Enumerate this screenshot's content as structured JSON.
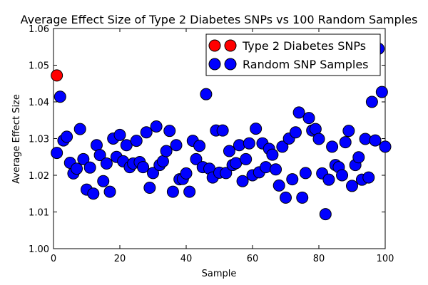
{
  "chart_data": {
    "type": "scatter",
    "title": "Average Effect Size of Type 2 Diabetes SNPs vs 100 Random Samples",
    "xlabel": "Sample",
    "ylabel": "Average Effect Size",
    "xlim": [
      0,
      100
    ],
    "ylim": [
      1.0,
      1.06
    ],
    "xticks": [
      0,
      20,
      40,
      60,
      80,
      100
    ],
    "yticks": [
      1.0,
      1.01,
      1.02,
      1.03,
      1.04,
      1.05,
      1.06
    ],
    "x_tick_labels": [
      "0",
      "20",
      "40",
      "60",
      "80",
      "100"
    ],
    "y_tick_labels": [
      "1.00",
      "1.01",
      "1.02",
      "1.03",
      "1.04",
      "1.05",
      "1.06"
    ],
    "grid": false,
    "legend": {
      "placement": "top-right",
      "entries": [
        "Type 2 Diabetes SNPs",
        "Random SNP Samples"
      ]
    },
    "series": [
      {
        "name": "Type 2 Diabetes SNPs",
        "color": "#ff0000",
        "x": [
          1
        ],
        "y": [
          1.0472
        ]
      },
      {
        "name": "Random SNP Samples",
        "color": "#0000ff",
        "x": [
          1,
          2,
          3,
          4,
          5,
          6,
          7,
          8,
          9,
          10,
          11,
          12,
          13,
          14,
          15,
          16,
          17,
          18,
          19,
          20,
          21,
          22,
          23,
          24,
          25,
          26,
          27,
          28,
          29,
          30,
          31,
          32,
          33,
          34,
          35,
          36,
          37,
          38,
          39,
          40,
          41,
          42,
          43,
          44,
          45,
          46,
          47,
          48,
          49,
          50,
          51,
          52,
          53,
          54,
          55,
          56,
          57,
          58,
          59,
          60,
          61,
          62,
          63,
          64,
          65,
          66,
          67,
          68,
          69,
          70,
          71,
          72,
          73,
          74,
          75,
          76,
          77,
          78,
          79,
          80,
          81,
          82,
          83,
          84,
          85,
          86,
          87,
          88,
          89,
          90,
          91,
          92,
          93,
          94,
          95,
          96,
          97,
          98,
          99,
          100
        ],
        "y": [
          1.0261,
          1.0414,
          1.0295,
          1.0305,
          1.0234,
          1.0205,
          1.0218,
          1.0326,
          1.0244,
          1.0161,
          1.0221,
          1.015,
          1.0282,
          1.0255,
          1.0184,
          1.0232,
          1.0155,
          1.03,
          1.025,
          1.031,
          1.0238,
          1.0282,
          1.0222,
          1.0232,
          1.0294,
          1.0236,
          1.0222,
          1.0317,
          1.0166,
          1.0206,
          1.0333,
          1.0228,
          1.0238,
          1.0266,
          1.0321,
          1.0155,
          1.0282,
          1.0189,
          1.019,
          1.0205,
          1.0155,
          1.0294,
          1.0244,
          1.028,
          1.0222,
          1.0421,
          1.0218,
          1.0194,
          1.0322,
          1.0207,
          1.0322,
          1.0206,
          1.0266,
          1.0228,
          1.0233,
          1.0282,
          1.0184,
          1.0244,
          1.0287,
          1.02,
          1.0327,
          1.0208,
          1.0287,
          1.0222,
          1.0272,
          1.0256,
          1.0216,
          1.0172,
          1.0278,
          1.0139,
          1.03,
          1.0189,
          1.0317,
          1.0371,
          1.0139,
          1.0206,
          1.0356,
          1.0322,
          1.0326,
          1.0299,
          1.0205,
          1.0094,
          1.0188,
          1.0278,
          1.0228,
          1.0222,
          1.02,
          1.029,
          1.0321,
          1.0171,
          1.0228,
          1.0249,
          1.0188,
          1.0299,
          1.0194,
          1.04,
          1.0295,
          1.0545,
          1.0427,
          1.0278
        ]
      }
    ]
  }
}
